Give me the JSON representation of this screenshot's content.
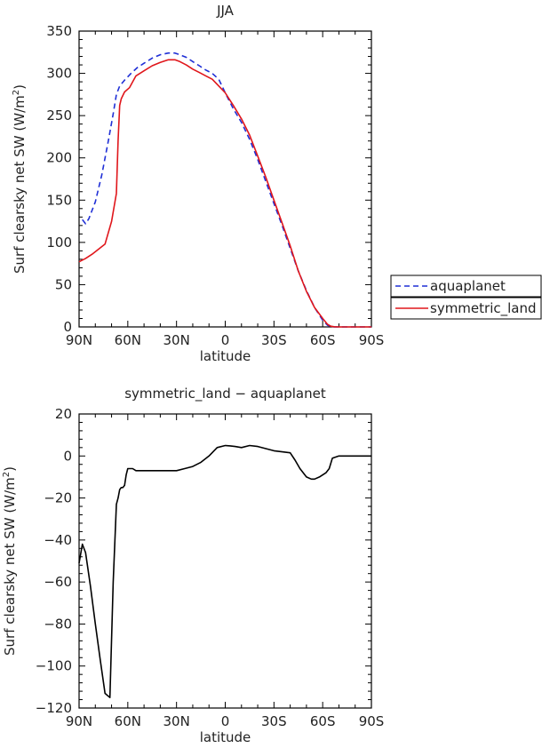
{
  "chart_data": [
    {
      "type": "line",
      "title": "JJA",
      "xlabel": "latitude",
      "ylabel": "Surf clearsky net SW (W/m²)",
      "ylabel_parts": {
        "main": "Surf clearsky net SW (W/m",
        "sup": "2",
        "tail": ")"
      },
      "xlim": [
        90,
        -90
      ],
      "ylim": [
        0,
        350
      ],
      "x_ticks": [
        90,
        60,
        30,
        0,
        -30,
        -60,
        -90
      ],
      "x_tick_labels": [
        "90N",
        "60N",
        "30N",
        "0",
        "30S",
        "60S",
        "90S"
      ],
      "y_ticks": [
        0,
        50,
        100,
        150,
        200,
        250,
        300,
        350
      ],
      "y_tick_labels": [
        "0",
        "50",
        "100",
        "150",
        "200",
        "250",
        "300",
        "350"
      ],
      "legend_position": "right",
      "series": [
        {
          "name": "aquaplanet",
          "color": "#1f2fd6",
          "dash": "dashed",
          "x": [
            88,
            86,
            84,
            80,
            76,
            72,
            69,
            67,
            65,
            62,
            58,
            54,
            50,
            45,
            40,
            35,
            31,
            28,
            24,
            20,
            16,
            12,
            8,
            4,
            0,
            -5,
            -10,
            -15,
            -20,
            -25,
            -30,
            -35,
            -40,
            -45,
            -50,
            -55,
            -60,
            -63,
            -65,
            -67,
            -70,
            -75,
            -80,
            -85,
            -90
          ],
          "values": [
            127,
            122,
            128,
            148,
            180,
            220,
            252,
            275,
            285,
            292,
            300,
            307,
            312,
            318,
            322,
            324,
            324,
            322,
            319,
            314,
            309,
            304,
            300,
            293,
            277,
            258,
            242,
            222,
            198,
            172,
            146,
            120,
            93,
            66,
            43,
            23,
            8,
            2,
            0.5,
            0.1,
            0,
            0,
            0,
            0,
            0
          ]
        },
        {
          "name": "symmetric_land",
          "color": "#e0161b",
          "dash": "solid",
          "x": [
            90,
            86,
            82,
            78,
            74,
            70,
            67,
            66,
            65,
            64,
            62,
            59,
            57,
            55,
            50,
            45,
            40,
            35,
            31,
            28,
            24,
            20,
            16,
            12,
            8,
            4,
            0,
            -5,
            -10,
            -15,
            -20,
            -25,
            -30,
            -35,
            -40,
            -45,
            -50,
            -55,
            -60,
            -63,
            -65,
            -67,
            -70,
            -75,
            -80,
            -85,
            -90
          ],
          "values": [
            77,
            81,
            86,
            92,
            98,
            125,
            158,
            220,
            262,
            270,
            278,
            283,
            290,
            297,
            303,
            309,
            313,
            316,
            316,
            314,
            310,
            305,
            301,
            297,
            293,
            285,
            277,
            262,
            246,
            227,
            202,
            177,
            150,
            123,
            96,
            66,
            42,
            23,
            10,
            3,
            0.8,
            0.2,
            0,
            0,
            0,
            0,
            0
          ]
        }
      ]
    },
    {
      "type": "line",
      "title": "symmetric_land − aquaplanet",
      "xlabel": "latitude",
      "ylabel": "Surf clearsky net SW (W/m²)",
      "ylabel_parts": {
        "main": "Surf clearsky net SW (W/m",
        "sup": "2",
        "tail": ")"
      },
      "xlim": [
        90,
        -90
      ],
      "ylim": [
        -120,
        20
      ],
      "x_ticks": [
        90,
        60,
        30,
        0,
        -30,
        -60,
        -90
      ],
      "x_tick_labels": [
        "90N",
        "60N",
        "30N",
        "0",
        "30S",
        "60S",
        "90S"
      ],
      "y_ticks": [
        -120,
        -100,
        -80,
        -60,
        -40,
        -20,
        0,
        20
      ],
      "y_tick_labels": [
        "−120",
        "−100",
        "−80",
        "−60",
        "−40",
        "−20",
        "0",
        "20"
      ],
      "series": [
        {
          "color": "#000000",
          "dash": "solid",
          "x": [
            90,
            88,
            86,
            83,
            80,
            77,
            74,
            71,
            69,
            67,
            66,
            65,
            64,
            63,
            62,
            61,
            60,
            59,
            57,
            55,
            50,
            45,
            40,
            35,
            30,
            25,
            20,
            15,
            10,
            5,
            0,
            -3,
            -6,
            -10,
            -15,
            -20,
            -25,
            -30,
            -35,
            -40,
            -43,
            -46,
            -50,
            -53,
            -55,
            -58,
            -62,
            -64,
            -66,
            -70,
            -75,
            -80,
            -90
          ],
          "values": [
            -51,
            -42,
            -46,
            -62,
            -80,
            -97,
            -113,
            -115,
            -60,
            -23,
            -20,
            -16,
            -15,
            -15,
            -14,
            -9,
            -6,
            -6,
            -6,
            -7,
            -7,
            -7,
            -7,
            -7,
            -7,
            -6,
            -5,
            -3,
            0,
            4,
            5,
            4.8,
            4.5,
            4,
            5,
            4.5,
            3.5,
            2.5,
            2,
            1.5,
            -2,
            -6,
            -10,
            -11,
            -11,
            -10,
            -8,
            -6,
            -1,
            0,
            0,
            0,
            0
          ]
        }
      ]
    }
  ]
}
